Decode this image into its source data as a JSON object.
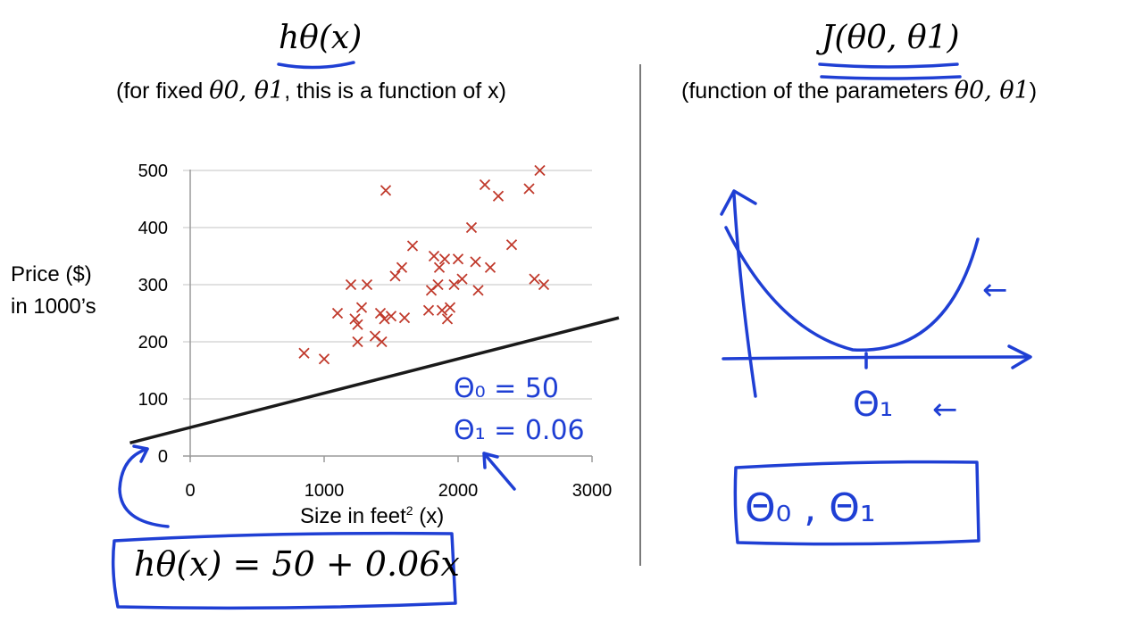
{
  "left_panel": {
    "title": "hθ(x)",
    "subtitle_prefix": "(for fixed ",
    "subtitle_params": "θ0, θ1",
    "subtitle_suffix": ", this is a function of x)"
  },
  "right_panel": {
    "title": "J(θ0, θ1)",
    "subtitle_prefix": "(function of the parameters ",
    "subtitle_params": "θ0, θ1",
    "subtitle_suffix": ")"
  },
  "chart_data": {
    "type": "scatter",
    "xlabel_main": "Size in feet",
    "xlabel_sup": "2",
    "xlabel_tail": " (x)",
    "ylabel_line1": "Price ($)",
    "ylabel_line2": "in 1000’s",
    "xlim": [
      0,
      3000
    ],
    "ylim": [
      0,
      500
    ],
    "x_ticks": [
      0,
      1000,
      2000,
      3000
    ],
    "y_ticks": [
      0,
      100,
      200,
      300,
      400,
      500
    ],
    "grid": true,
    "marker": "x",
    "marker_color": "#c0392b",
    "points": [
      [
        850,
        180
      ],
      [
        1000,
        170
      ],
      [
        1100,
        250
      ],
      [
        1200,
        300
      ],
      [
        1230,
        240
      ],
      [
        1250,
        230
      ],
      [
        1250,
        200
      ],
      [
        1280,
        260
      ],
      [
        1320,
        300
      ],
      [
        1380,
        210
      ],
      [
        1420,
        250
      ],
      [
        1430,
        200
      ],
      [
        1450,
        240
      ],
      [
        1460,
        465
      ],
      [
        1500,
        245
      ],
      [
        1530,
        315
      ],
      [
        1580,
        330
      ],
      [
        1600,
        242
      ],
      [
        1660,
        368
      ],
      [
        1780,
        255
      ],
      [
        1800,
        290
      ],
      [
        1820,
        350
      ],
      [
        1850,
        300
      ],
      [
        1860,
        330
      ],
      [
        1880,
        255
      ],
      [
        1900,
        345
      ],
      [
        1920,
        240
      ],
      [
        1940,
        260
      ],
      [
        1970,
        300
      ],
      [
        2000,
        345
      ],
      [
        2030,
        310
      ],
      [
        2100,
        400
      ],
      [
        2130,
        340
      ],
      [
        2150,
        290
      ],
      [
        2200,
        475
      ],
      [
        2240,
        330
      ],
      [
        2300,
        455
      ],
      [
        2400,
        370
      ],
      [
        2530,
        468
      ],
      [
        2570,
        310
      ],
      [
        2610,
        500
      ],
      [
        2640,
        300
      ]
    ],
    "hypothesis_line": {
      "theta0": 50,
      "theta1": 0.06,
      "x_range": [
        -450,
        3200
      ],
      "color": "#1a1a1a"
    }
  },
  "annotations": {
    "theta0_value": "Θ₀ = 50",
    "theta1_value": "Θ₁ = 0.06",
    "formula": "hθ(x) = 50 + 0.06x",
    "axis_param": "Θ₁",
    "box_params": "Θ₀ , Θ₁",
    "arrow_glyph": "←",
    "ink_color": "#1f3fd4"
  }
}
